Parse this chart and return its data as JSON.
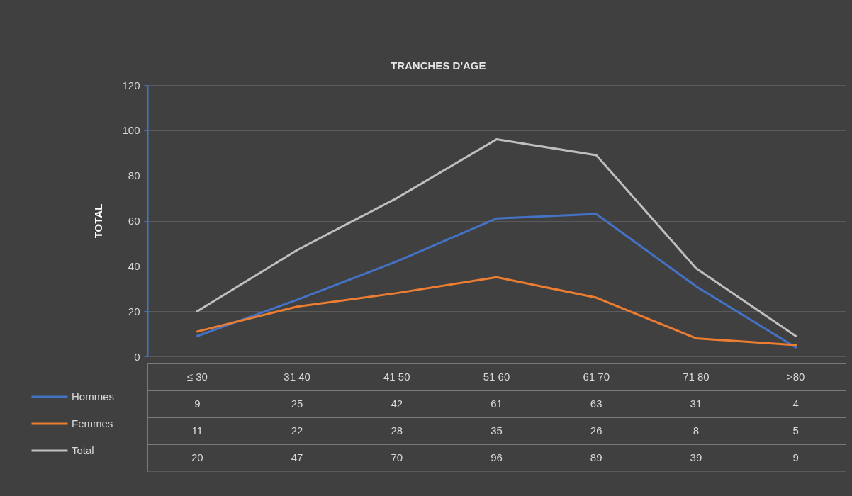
{
  "chart_data": {
    "type": "line",
    "title": "TRANCHES D'AGE",
    "ylabel": "TOTAL",
    "categories": [
      "≤ 30",
      "31 40",
      "41 50",
      "51 60",
      "61 70",
      "71 80",
      ">80"
    ],
    "series": [
      {
        "name": "Hommes",
        "color": "#4472c4",
        "values": [
          9,
          25,
          42,
          61,
          63,
          31,
          4
        ]
      },
      {
        "name": "Femmes",
        "color": "#ed7d31",
        "values": [
          11,
          22,
          28,
          35,
          26,
          8,
          5
        ]
      },
      {
        "name": "Total",
        "color": "#bfbfbf",
        "values": [
          20,
          47,
          70,
          96,
          89,
          39,
          9
        ]
      }
    ],
    "ylim": [
      0,
      120
    ],
    "yticks": [
      0,
      20,
      40,
      60,
      80,
      100,
      120
    ],
    "grid": true,
    "legend": "bottom left",
    "data_labels": true
  }
}
